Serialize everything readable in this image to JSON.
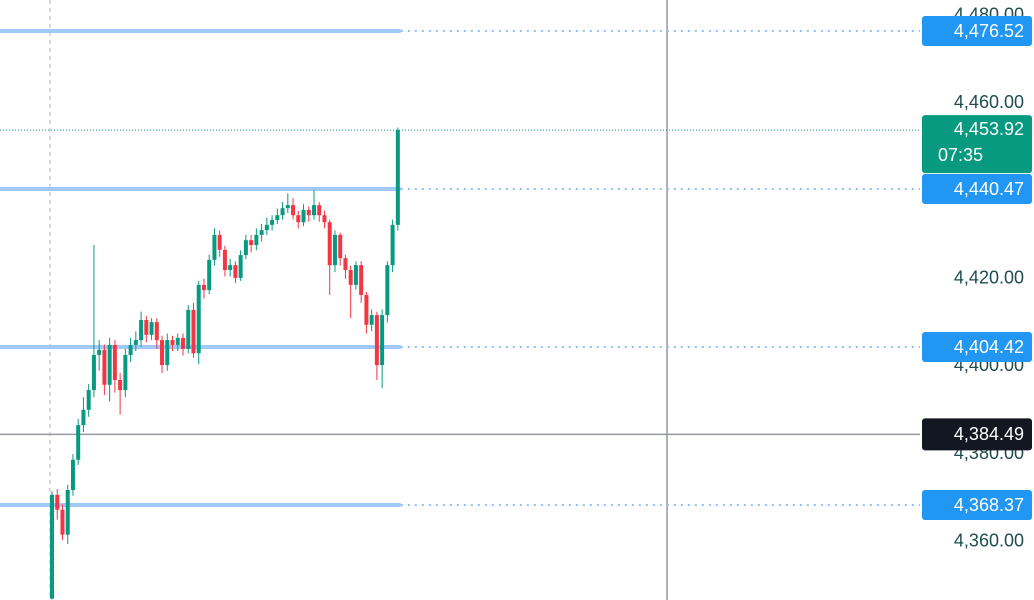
{
  "chart_data": {
    "type": "candlestick",
    "open": [
      4347.0,
      4370.7,
      4367.3,
      4361.6,
      4371.8,
      4378.7,
      4386.6,
      4390.1,
      4394.6,
      4402.6,
      4403.8,
      4395.8,
      4404.9,
      4396.9,
      4394.6,
      4402.6,
      4404.9,
      4406.0,
      4410.6,
      4407.2,
      4410.1,
      4406.0,
      4400.3,
      4406.0,
      4404.9,
      4406.5,
      4404.0,
      4412.9,
      4403.0,
      4418.6,
      4417.4,
      4424.3,
      4430.0,
      4426.6,
      4422.0,
      4423.1,
      4420.2,
      4425.4,
      4428.8,
      4427.7,
      4430.0,
      4431.1,
      4432.3,
      4433.4,
      4434.5,
      4436.1,
      4436.8,
      4434.5,
      4432.9,
      4435.7,
      4434.5,
      4436.8,
      4434.5,
      4432.9,
      4423.1,
      4430.0,
      4424.7,
      4422.0,
      4418.6,
      4423.1,
      4416.3,
      4409.5,
      4411.7,
      4400.3,
      4411.7,
      4423.1,
      4432.3
    ],
    "high": [
      4371.5,
      4372.0,
      4368.5,
      4373.0,
      4380.0,
      4388.0,
      4393.0,
      4396.0,
      4427.7,
      4406.0,
      4405.0,
      4406.5,
      4406.0,
      4398.5,
      4404.0,
      4406.5,
      4408.0,
      4412.5,
      4411.5,
      4411.0,
      4411.0,
      4407.0,
      4407.5,
      4407.0,
      4407.5,
      4407.5,
      4414.0,
      4414.5,
      4419.5,
      4420.0,
      4425.5,
      4431.5,
      4431.0,
      4427.5,
      4424.5,
      4424.0,
      4426.5,
      4430.0,
      4430.0,
      4431.5,
      4432.5,
      4434.0,
      4434.5,
      4436.0,
      4437.5,
      4439.5,
      4438.4,
      4435.5,
      4437.0,
      4436.5,
      4440.2,
      4437.5,
      4435.5,
      4433.5,
      4431.0,
      4430.5,
      4425.5,
      4423.0,
      4424.0,
      4424.0,
      4417.0,
      4413.0,
      4412.5,
      4413.0,
      4424.0,
      4433.5,
      4454.5
    ],
    "low": [
      4346.8,
      4365.0,
      4360.4,
      4359.5,
      4370.5,
      4377.5,
      4385.0,
      4388.5,
      4393.0,
      4399.0,
      4393.5,
      4392.0,
      4394.0,
      4389.0,
      4393.0,
      4401.0,
      4403.5,
      4404.5,
      4405.5,
      4406.0,
      4404.0,
      4398.5,
      4399.0,
      4403.5,
      4403.5,
      4402.5,
      4403.0,
      4402.0,
      4400.5,
      4415.5,
      4416.5,
      4423.0,
      4425.0,
      4420.5,
      4420.5,
      4419.0,
      4419.5,
      4424.5,
      4426.0,
      4426.5,
      4428.5,
      4430.0,
      4431.0,
      4432.5,
      4433.5,
      4435.0,
      4433.5,
      4431.5,
      4432.0,
      4433.0,
      4433.5,
      4433.0,
      4431.5,
      4416.3,
      4421.5,
      4423.0,
      4420.0,
      4411.0,
      4417.5,
      4414.5,
      4407.5,
      4408.0,
      4396.9,
      4395.0,
      4410.0,
      4421.5,
      4431.0
    ],
    "close": [
      4370.7,
      4367.3,
      4361.6,
      4371.8,
      4378.7,
      4386.6,
      4390.1,
      4394.6,
      4402.6,
      4403.8,
      4395.8,
      4404.9,
      4396.9,
      4394.6,
      4402.6,
      4404.9,
      4406.0,
      4410.6,
      4407.2,
      4410.1,
      4406.0,
      4400.3,
      4406.0,
      4404.9,
      4406.5,
      4404.0,
      4412.9,
      4403.0,
      4418.6,
      4417.4,
      4424.3,
      4430.0,
      4426.6,
      4422.0,
      4423.1,
      4420.2,
      4425.4,
      4428.8,
      4427.7,
      4430.0,
      4431.1,
      4432.3,
      4433.4,
      4434.5,
      4436.1,
      4436.8,
      4434.5,
      4432.9,
      4435.7,
      4434.5,
      4436.8,
      4434.5,
      4432.9,
      4423.1,
      4430.0,
      4424.7,
      4422.0,
      4418.6,
      4423.1,
      4416.3,
      4409.5,
      4411.7,
      4400.3,
      4411.7,
      4423.1,
      4432.3,
      4453.92
    ],
    "up_color": "#089981",
    "down_color": "#f23645",
    "ylim": [
      4346.7,
      4483.6
    ],
    "yticks": [
      {
        "value": 4480,
        "label": "4,480.00"
      },
      {
        "value": 4460,
        "label": "4,460.00"
      },
      {
        "value": 4420,
        "label": "4,420.00"
      },
      {
        "value": 4400,
        "label": "4,400.00"
      },
      {
        "value": 4380,
        "label": "4,380.00"
      },
      {
        "value": 4360,
        "label": "4,360.00"
      }
    ],
    "levels": [
      {
        "value": 4476.52,
        "label": "4,476.52"
      },
      {
        "value": 4440.47,
        "label": "4,440.47"
      },
      {
        "value": 4404.42,
        "label": "4,404.42"
      },
      {
        "value": 4368.37,
        "label": "4,368.37"
      }
    ],
    "level_color": "#2196f3",
    "current_price": {
      "value": 4453.92,
      "label": "4,453.92",
      "countdown": "07:35"
    },
    "crosshair": {
      "value": 4384.49,
      "label": "4,384.49"
    }
  }
}
